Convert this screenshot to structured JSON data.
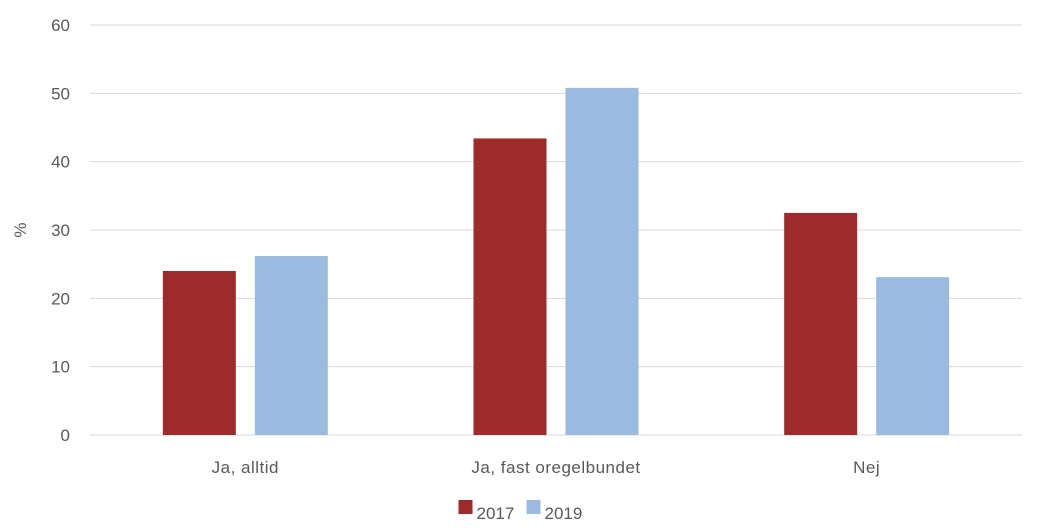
{
  "chart_data": {
    "type": "bar",
    "categories": [
      "Ja, alltid",
      "Ja, fast oregelbundet",
      "Nej"
    ],
    "series": [
      {
        "name": "2017",
        "values": [
          24.0,
          43.4,
          32.5
        ],
        "color": "#9e2a2b"
      },
      {
        "name": "2019",
        "values": [
          26.2,
          50.8,
          23.1
        ],
        "color": "#9bbadf"
      }
    ],
    "ylabel": "%",
    "ylim": [
      0,
      60
    ],
    "yticks": [
      0,
      10,
      20,
      30,
      40,
      50,
      60
    ],
    "grid": true,
    "legend": "bottom-center"
  }
}
